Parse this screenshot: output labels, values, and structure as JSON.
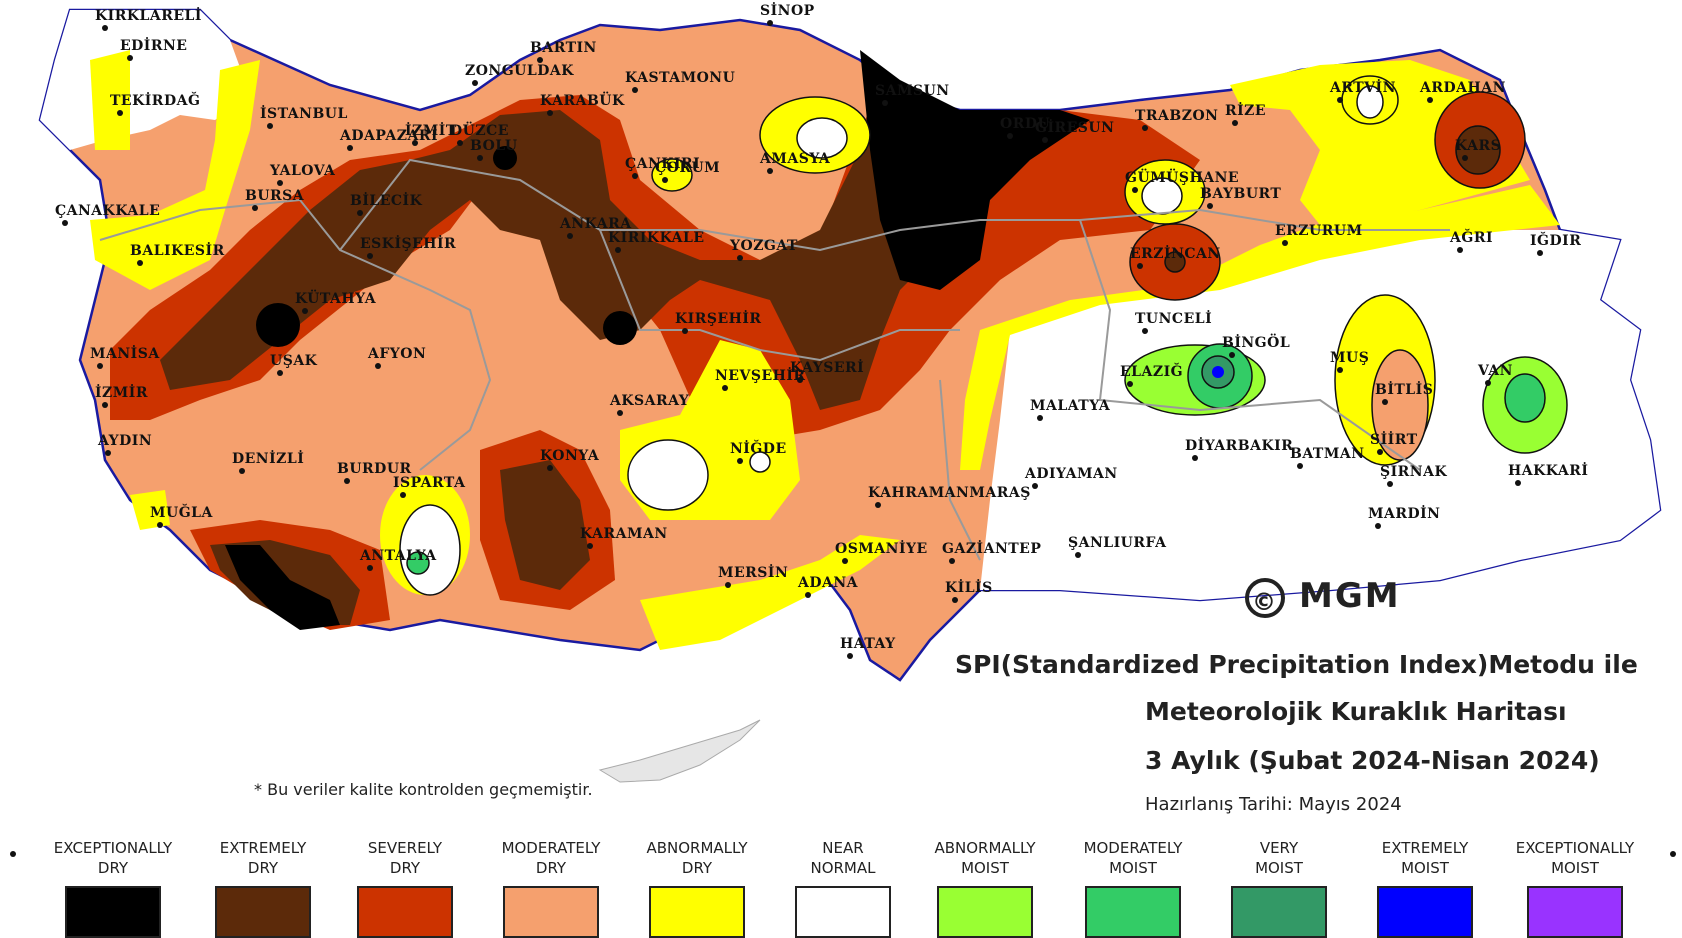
{
  "title": {
    "line1": "SPI(Standardized Precipitation Index)Metodu ile",
    "line2": "Meteorolojik Kuraklık Haritası",
    "line3": "3 Aylık (Şubat 2024-Nisan 2024)",
    "date": "Hazırlanış Tarihi: Mayıs 2024"
  },
  "note": "* Bu veriler kalite kontrolden geçmemiştir.",
  "copyright": {
    "symbol": "©",
    "org": "MGM"
  },
  "legend": [
    {
      "line1": "EXCEPTIONALLY",
      "line2": "DRY",
      "color": "#000000"
    },
    {
      "line1": "EXTREMELY",
      "line2": "DRY",
      "color": "#5c2a0a"
    },
    {
      "line1": "SEVERELY",
      "line2": "DRY",
      "color": "#cc3300"
    },
    {
      "line1": "MODERATELY",
      "line2": "DRY",
      "color": "#f5a06e"
    },
    {
      "line1": "ABNORMALLY",
      "line2": "DRY",
      "color": "#ffff00"
    },
    {
      "line1": "NEAR",
      "line2": "NORMAL",
      "color": "#ffffff"
    },
    {
      "line1": "ABNORMALLY",
      "line2": "MOIST",
      "color": "#99ff33"
    },
    {
      "line1": "MODERATELY",
      "line2": "MOIST",
      "color": "#33cc66"
    },
    {
      "line1": "VERY",
      "line2": "MOIST",
      "color": "#339966"
    },
    {
      "line1": "EXTREMELY",
      "line2": "MOIST",
      "color": "#0000ff"
    },
    {
      "line1": "EXCEPTIONALLY",
      "line2": "MOIST",
      "color": "#9933ff"
    }
  ],
  "cities": [
    "KIRKLARELİ",
    "EDİRNE",
    "TEKİRDAĞ",
    "İSTANBUL",
    "ÇANAKKALE",
    "BALIKESİR",
    "BURSA",
    "YALOVA",
    "ADAPAZARI",
    "İZMİT",
    "BOLU",
    "DÜZCE",
    "ZONGULDAK",
    "BARTIN",
    "KARABÜK",
    "KASTAMONU",
    "SİNOP",
    "SAMSUN",
    "ÇANKIRI",
    "ÇORUM",
    "AMASYA",
    "ORDU",
    "GİRESUN",
    "TRABZON",
    "RİZE",
    "ARTVİN",
    "ARDAHAN",
    "KARS",
    "GÜMÜŞHANE",
    "BAYBURT",
    "ERZURUM",
    "AĞRI",
    "IĞDIR",
    "ERZİNCAN",
    "TUNCELİ",
    "BİNGÖL",
    "MUŞ",
    "VAN",
    "BİTLİS",
    "ELAZIĞ",
    "MALATYA",
    "DİYARBAKIR",
    "BATMAN",
    "SİİRT",
    "ŞIRNAK",
    "HAKKARİ",
    "MARDİN",
    "ADIYAMAN",
    "ŞANLIURFA",
    "GAZİANTEP",
    "KİLİS",
    "OSMANİYE",
    "ADANA",
    "HATAY",
    "KAHRAMANMARAŞ",
    "KAYSERİ",
    "NİĞDE",
    "NEVŞEHİR",
    "KIRŞEHİR",
    "YOZGAT",
    "KIRIKKALE",
    "ANKARA",
    "ESKİŞEHİR",
    "BİLECİK",
    "KÜTAHYA",
    "UŞAK",
    "MANİSA",
    "İZMİR",
    "AYDIN",
    "DENİZLİ",
    "MUĞLA",
    "AFYON",
    "BURDUR",
    "ISPARTA",
    "ANTALYA",
    "KONYA",
    "KARAMAN",
    "AKSARAY",
    "MERSİN"
  ]
}
